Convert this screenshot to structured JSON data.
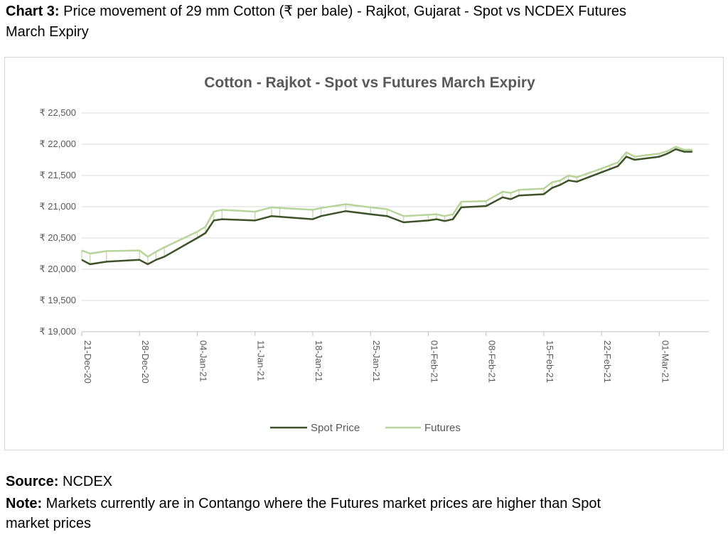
{
  "caption": {
    "label": "Chart 3:",
    "text_line1": " Price movement of 29 mm Cotton (₹ per bale) - Rajkot, Gujarat - Spot vs NCDEX Futures",
    "text_line2": "March Expiry"
  },
  "source": {
    "label": "Source:",
    "text": " NCDEX"
  },
  "note": {
    "label": "Note:",
    "text_line1": " Markets currently are in Contango where the Futures market prices are higher than Spot",
    "text_line2": "market prices"
  },
  "colors": {
    "spot": "#3d5229",
    "futures": "#b8d49a",
    "spread": "#c9dcb2",
    "grid": "#d9d9d9",
    "axis": "#bfbfbf"
  },
  "chart_data": {
    "type": "line",
    "title": "Cotton - Rajkot - Spot vs Futures March Expiry",
    "xlabel": "",
    "ylabel": "",
    "y_ticks": [
      "₹ 19,000",
      "₹ 19,500",
      "₹ 20,000",
      "₹ 20,500",
      "₹ 21,000",
      "₹ 21,500",
      "₹ 22,000",
      "₹ 22,500"
    ],
    "ylim": [
      19000,
      22500
    ],
    "x_tick_labels": [
      "21-Dec-20",
      "28-Dec-20",
      "04-Jan-21",
      "11-Jan-21",
      "18-Jan-21",
      "25-Jan-21",
      "01-Feb-21",
      "08-Feb-21",
      "15-Feb-21",
      "22-Feb-21",
      "01-Mar-21"
    ],
    "x_tick_dates": [
      "2020-12-21",
      "2020-12-28",
      "2021-01-04",
      "2021-01-11",
      "2021-01-18",
      "2021-01-25",
      "2021-02-01",
      "2021-02-08",
      "2021-02-15",
      "2021-02-22",
      "2021-03-01"
    ],
    "xlim": [
      "2020-12-21",
      "2021-03-07"
    ],
    "legend_position": "bottom",
    "grid": true,
    "series": [
      {
        "name": "Spot Price",
        "points": [
          [
            "2020-12-21",
            20150
          ],
          [
            "2020-12-22",
            20080
          ],
          [
            "2020-12-24",
            20120
          ],
          [
            "2020-12-28",
            20150
          ],
          [
            "2020-12-29",
            20080
          ],
          [
            "2020-12-30",
            20150
          ],
          [
            "2020-12-31",
            20200
          ],
          [
            "2021-01-04",
            20500
          ],
          [
            "2021-01-05",
            20580
          ],
          [
            "2021-01-06",
            20780
          ],
          [
            "2021-01-07",
            20800
          ],
          [
            "2021-01-11",
            20780
          ],
          [
            "2021-01-13",
            20850
          ],
          [
            "2021-01-14",
            20840
          ],
          [
            "2021-01-18",
            20800
          ],
          [
            "2021-01-19",
            20850
          ],
          [
            "2021-01-22",
            20930
          ],
          [
            "2021-01-25",
            20880
          ],
          [
            "2021-01-27",
            20850
          ],
          [
            "2021-01-29",
            20750
          ],
          [
            "2021-02-01",
            20780
          ],
          [
            "2021-02-02",
            20800
          ],
          [
            "2021-02-03",
            20770
          ],
          [
            "2021-02-04",
            20800
          ],
          [
            "2021-02-05",
            20990
          ],
          [
            "2021-02-08",
            21010
          ],
          [
            "2021-02-10",
            21150
          ],
          [
            "2021-02-11",
            21120
          ],
          [
            "2021-02-12",
            21180
          ],
          [
            "2021-02-15",
            21200
          ],
          [
            "2021-02-16",
            21300
          ],
          [
            "2021-02-17",
            21350
          ],
          [
            "2021-02-18",
            21420
          ],
          [
            "2021-02-19",
            21400
          ],
          [
            "2021-02-22",
            21550
          ],
          [
            "2021-02-23",
            21600
          ],
          [
            "2021-02-24",
            21650
          ],
          [
            "2021-02-25",
            21800
          ],
          [
            "2021-02-26",
            21750
          ],
          [
            "2021-03-01",
            21800
          ],
          [
            "2021-03-02",
            21850
          ],
          [
            "2021-03-03",
            21920
          ],
          [
            "2021-03-04",
            21880
          ],
          [
            "2021-03-05",
            21880
          ]
        ]
      },
      {
        "name": "Futures",
        "points": [
          [
            "2020-12-21",
            20300
          ],
          [
            "2020-12-22",
            20250
          ],
          [
            "2020-12-24",
            20290
          ],
          [
            "2020-12-28",
            20300
          ],
          [
            "2020-12-29",
            20200
          ],
          [
            "2020-12-30",
            20280
          ],
          [
            "2020-12-31",
            20350
          ],
          [
            "2021-01-04",
            20600
          ],
          [
            "2021-01-05",
            20680
          ],
          [
            "2021-01-06",
            20920
          ],
          [
            "2021-01-07",
            20950
          ],
          [
            "2021-01-11",
            20920
          ],
          [
            "2021-01-13",
            20990
          ],
          [
            "2021-01-14",
            20980
          ],
          [
            "2021-01-18",
            20950
          ],
          [
            "2021-01-19",
            20980
          ],
          [
            "2021-01-22",
            21040
          ],
          [
            "2021-01-25",
            20990
          ],
          [
            "2021-01-27",
            20960
          ],
          [
            "2021-01-29",
            20850
          ],
          [
            "2021-02-01",
            20870
          ],
          [
            "2021-02-02",
            20880
          ],
          [
            "2021-02-03",
            20850
          ],
          [
            "2021-02-04",
            20880
          ],
          [
            "2021-02-05",
            21080
          ],
          [
            "2021-02-08",
            21090
          ],
          [
            "2021-02-10",
            21240
          ],
          [
            "2021-02-11",
            21220
          ],
          [
            "2021-02-12",
            21270
          ],
          [
            "2021-02-15",
            21290
          ],
          [
            "2021-02-16",
            21390
          ],
          [
            "2021-02-17",
            21420
          ],
          [
            "2021-02-18",
            21500
          ],
          [
            "2021-02-19",
            21470
          ],
          [
            "2021-02-22",
            21610
          ],
          [
            "2021-02-23",
            21660
          ],
          [
            "2021-02-24",
            21710
          ],
          [
            "2021-02-25",
            21870
          ],
          [
            "2021-02-26",
            21800
          ],
          [
            "2021-03-01",
            21850
          ],
          [
            "2021-03-02",
            21890
          ],
          [
            "2021-03-03",
            21960
          ],
          [
            "2021-03-04",
            21910
          ],
          [
            "2021-03-05",
            21910
          ]
        ]
      }
    ]
  }
}
